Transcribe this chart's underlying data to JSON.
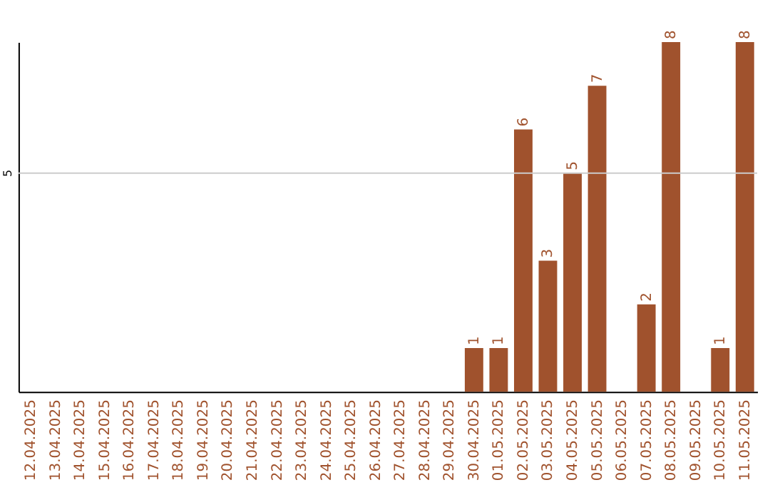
{
  "chart_data": {
    "type": "bar",
    "categories": [
      "12.04.2025",
      "13.04.2025",
      "14.04.2025",
      "15.04.2025",
      "16.04.2025",
      "17.04.2025",
      "18.04.2025",
      "19.04.2025",
      "20.04.2025",
      "21.04.2025",
      "22.04.2025",
      "23.04.2025",
      "24.04.2025",
      "25.04.2025",
      "26.04.2025",
      "27.04.2025",
      "28.04.2025",
      "29.04.2025",
      "30.04.2025",
      "01.05.2025",
      "02.05.2025",
      "03.05.2025",
      "04.05.2025",
      "05.05.2025",
      "06.05.2025",
      "07.05.2025",
      "08.05.2025",
      "09.05.2025",
      "10.05.2025",
      "11.05.2025"
    ],
    "values": [
      null,
      null,
      null,
      null,
      null,
      null,
      null,
      null,
      null,
      null,
      null,
      null,
      null,
      null,
      null,
      null,
      null,
      null,
      1,
      1,
      6,
      3,
      5,
      7,
      null,
      2,
      8,
      null,
      1,
      8
    ],
    "data_labels": true,
    "color": "#a0522d",
    "ylim": [
      0,
      8
    ],
    "ref_lines": [
      {
        "axis": "y",
        "value": 5,
        "label": "5",
        "color": "#cccccc"
      }
    ]
  }
}
